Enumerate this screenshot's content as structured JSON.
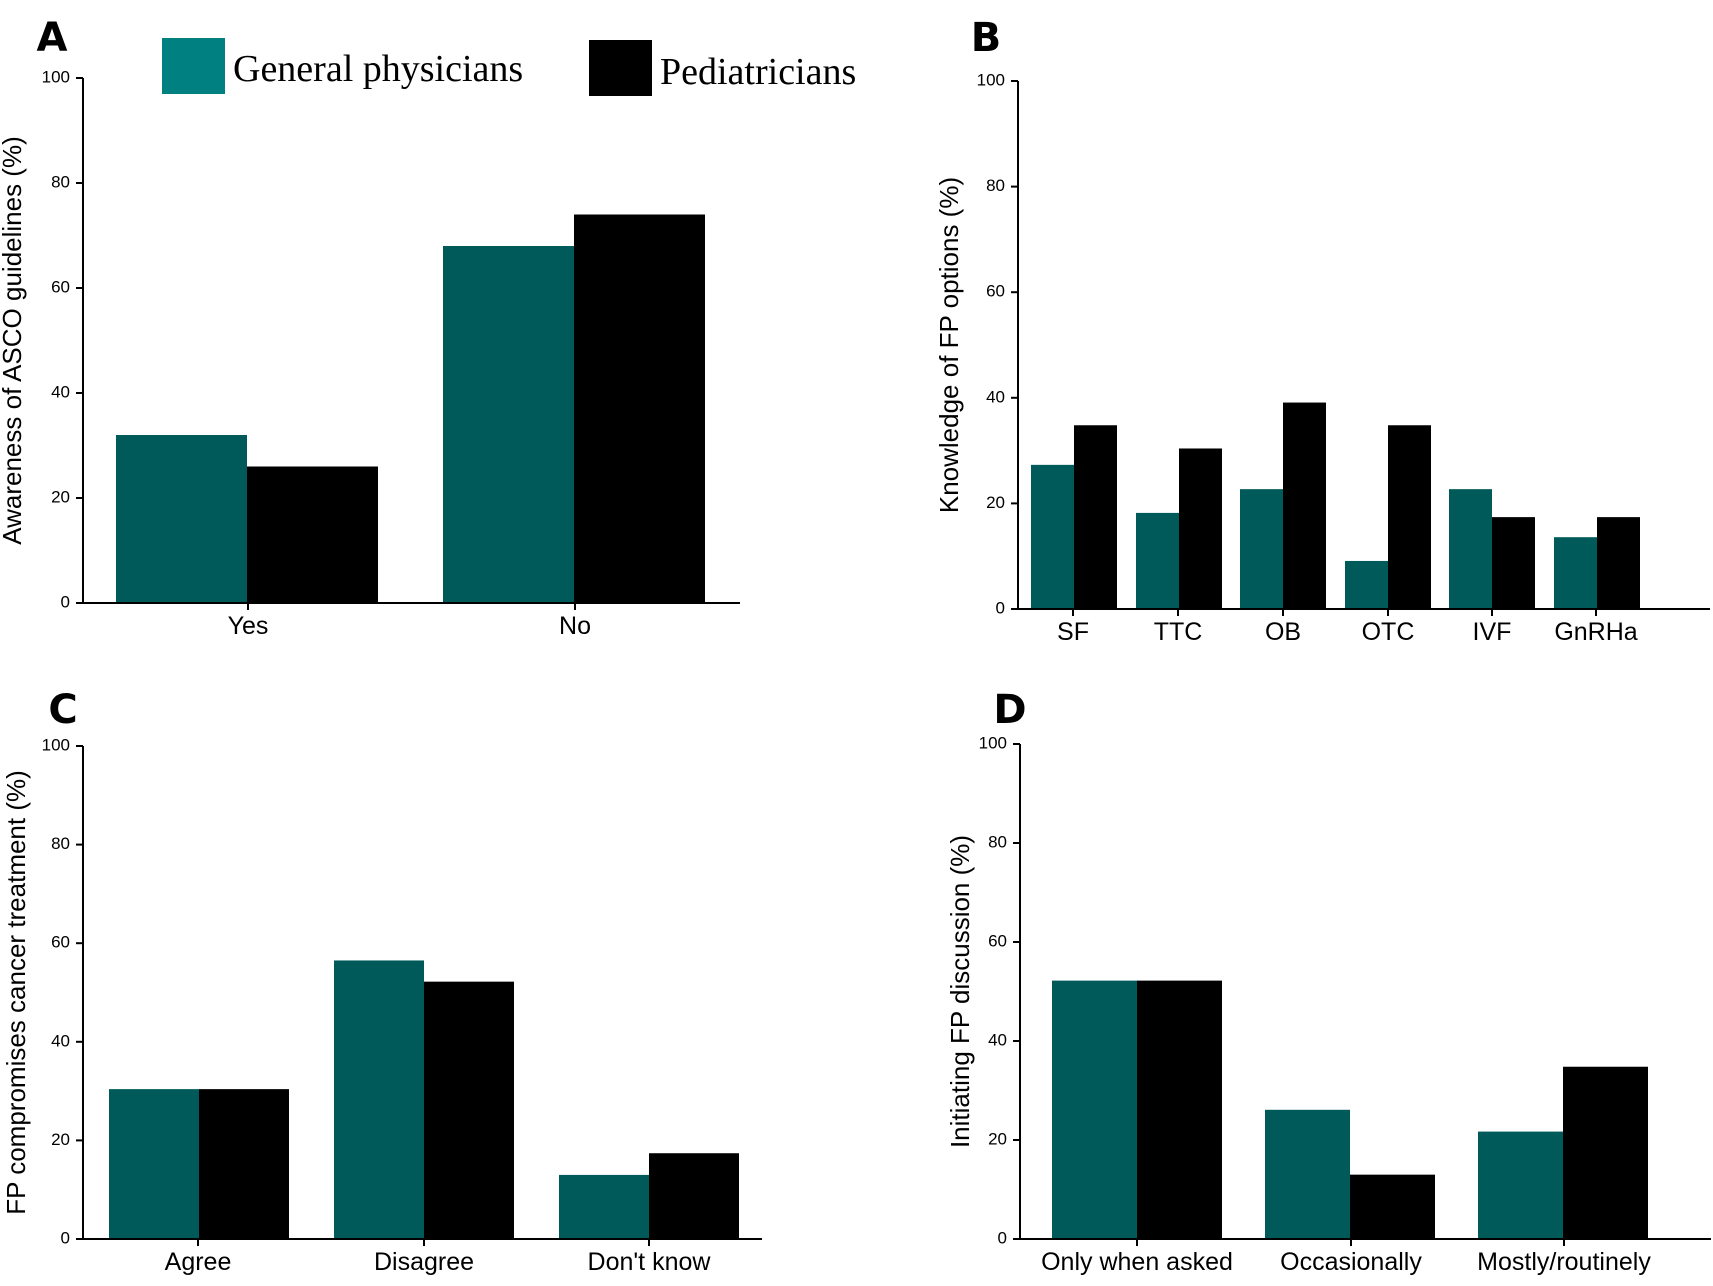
{
  "legend": {
    "general": {
      "label": "General physicians",
      "color": "#008080"
    },
    "pediatric": {
      "label": "Pediatricians",
      "color": "#000000"
    }
  },
  "colors": {
    "general_bar": "#005a5a",
    "pediatric_bar": "#000000"
  },
  "chart_data": [
    {
      "panel": "A",
      "type": "bar",
      "categories": [
        "Yes",
        "No"
      ],
      "ylabel": "Awareness of ASCO guidelines (%)",
      "ylim": [
        0,
        100
      ],
      "yticks": [
        "0",
        "20",
        "40",
        "60",
        "80",
        "100"
      ],
      "series": [
        {
          "name": "General physicians",
          "values": [
            32,
            68
          ]
        },
        {
          "name": "Pediatricians",
          "values": [
            26,
            74
          ]
        }
      ]
    },
    {
      "panel": "B",
      "type": "bar",
      "categories": [
        "SF",
        "TTC",
        "OB",
        "OTC",
        "IVF",
        "GnRHa"
      ],
      "ylabel": "Knowledge of FP options (%)",
      "ylim": [
        0,
        100
      ],
      "yticks": [
        "0",
        "20",
        "40",
        "60",
        "80",
        "100"
      ],
      "series": [
        {
          "name": "General physicians",
          "values": [
            27.3,
            18.2,
            22.7,
            9.1,
            22.7,
            13.6
          ]
        },
        {
          "name": "Pediatricians",
          "values": [
            34.8,
            30.4,
            39.1,
            34.8,
            17.4,
            17.4
          ]
        }
      ]
    },
    {
      "panel": "C",
      "type": "bar",
      "categories": [
        "Agree",
        "Disagree",
        "Don't know"
      ],
      "ylabel": "FP compromises cancer treatment (%)",
      "ylim": [
        0,
        100
      ],
      "yticks": [
        "0",
        "20",
        "40",
        "60",
        "80",
        "100"
      ],
      "series": [
        {
          "name": "General physicians",
          "values": [
            30.4,
            56.5,
            13
          ]
        },
        {
          "name": "Pediatricians",
          "values": [
            30.4,
            52.2,
            17.4
          ]
        }
      ]
    },
    {
      "panel": "D",
      "type": "bar",
      "categories": [
        "Only when asked",
        "Occasionally",
        "Mostly/routinely"
      ],
      "ylabel": "Initiating FP discussion (%)",
      "ylim": [
        0,
        100
      ],
      "yticks": [
        "0",
        "20",
        "40",
        "60",
        "80",
        "100"
      ],
      "series": [
        {
          "name": "General physicians",
          "values": [
            52.2,
            26.1,
            21.7
          ]
        },
        {
          "name": "Pediatricians",
          "values": [
            52.2,
            13,
            34.8
          ]
        }
      ]
    }
  ]
}
